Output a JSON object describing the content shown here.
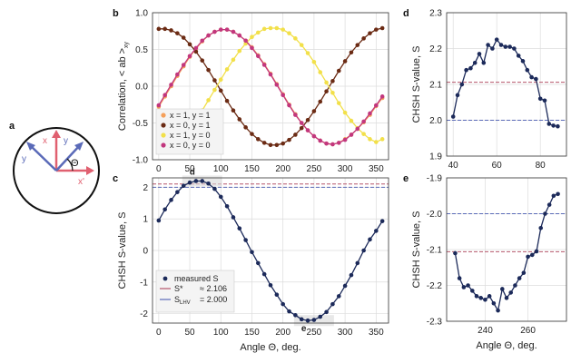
{
  "chart_data": [
    {
      "panel": "b",
      "type": "line",
      "ylabel": "Correlation, < ab >xy",
      "ylabel_main": "Correlation, ",
      "ylabel_bracket": "< ab >",
      "ylabel_sub": "xy",
      "x": [
        0,
        10,
        20,
        30,
        40,
        50,
        60,
        70,
        80,
        90,
        100,
        110,
        120,
        130,
        140,
        150,
        160,
        170,
        180,
        190,
        200,
        210,
        220,
        230,
        240,
        250,
        260,
        270,
        280,
        290,
        300,
        310,
        320,
        330,
        340,
        350,
        360
      ],
      "xlim": [
        -10,
        370
      ],
      "ylim": [
        -1.0,
        1.0
      ],
      "xticks": [
        "0",
        "50",
        "100",
        "150",
        "200",
        "250",
        "300",
        "350"
      ],
      "yticks": [
        "1.0",
        "0.5",
        "0.0",
        "-0.5",
        "-1.0"
      ],
      "grid": true,
      "legend_position": "lower-left",
      "series": [
        {
          "name": "x = 1, y = 1",
          "color": "#f5a05a",
          "values": [
            -0.28,
            -0.14,
            0.0,
            0.14,
            0.27,
            0.4,
            0.51,
            0.61,
            0.69,
            0.74,
            0.77,
            0.77,
            0.74,
            0.69,
            0.62,
            0.53,
            0.42,
            0.3,
            0.17,
            0.03,
            -0.11,
            -0.25,
            -0.38,
            -0.5,
            -0.6,
            -0.68,
            -0.74,
            -0.78,
            -0.79,
            -0.77,
            -0.72,
            -0.66,
            -0.58,
            -0.49,
            -0.39,
            -0.27,
            -0.16
          ]
        },
        {
          "name": "x = 0, y = 1",
          "color": "#6b2b14",
          "values": [
            0.78,
            0.78,
            0.76,
            0.72,
            0.66,
            0.57,
            0.47,
            0.35,
            0.22,
            0.08,
            -0.06,
            -0.2,
            -0.33,
            -0.45,
            -0.56,
            -0.65,
            -0.72,
            -0.77,
            -0.8,
            -0.8,
            -0.78,
            -0.73,
            -0.66,
            -0.57,
            -0.46,
            -0.34,
            -0.21,
            -0.07,
            0.07,
            0.21,
            0.34,
            0.46,
            0.56,
            0.65,
            0.72,
            0.77,
            0.79
          ]
        },
        {
          "name": "x = 1, y = 0",
          "color": "#f2e04a",
          "values": [
            -0.78,
            -0.78,
            -0.76,
            -0.72,
            -0.65,
            -0.56,
            -0.45,
            -0.33,
            -0.19,
            -0.05,
            0.09,
            0.23,
            0.36,
            0.48,
            0.58,
            0.67,
            0.73,
            0.78,
            0.79,
            0.79,
            0.77,
            0.72,
            0.65,
            0.56,
            0.45,
            0.33,
            0.19,
            0.05,
            -0.09,
            -0.23,
            -0.36,
            -0.47,
            -0.57,
            -0.65,
            -0.72,
            -0.76,
            -0.72
          ]
        },
        {
          "name": "x = 0, y = 0",
          "color": "#c2377e",
          "values": [
            -0.26,
            -0.12,
            0.02,
            0.16,
            0.29,
            0.41,
            0.52,
            0.62,
            0.69,
            0.74,
            0.77,
            0.77,
            0.74,
            0.69,
            0.62,
            0.52,
            0.41,
            0.29,
            0.16,
            0.02,
            -0.12,
            -0.26,
            -0.39,
            -0.5,
            -0.6,
            -0.68,
            -0.74,
            -0.78,
            -0.79,
            -0.77,
            -0.73,
            -0.66,
            -0.58,
            -0.48,
            -0.37,
            -0.26,
            -0.14
          ]
        }
      ]
    },
    {
      "panel": "c",
      "type": "line",
      "xlabel": "Angle Θ, deg.",
      "ylabel": "CHSH S-value, S",
      "x": [
        0,
        10,
        20,
        30,
        40,
        50,
        60,
        70,
        80,
        90,
        100,
        110,
        120,
        130,
        140,
        150,
        160,
        170,
        180,
        190,
        200,
        210,
        220,
        230,
        240,
        250,
        260,
        270,
        280,
        290,
        300,
        310,
        320,
        330,
        340,
        350,
        360
      ],
      "xlim": [
        -10,
        370
      ],
      "ylim": [
        -2.3,
        2.3
      ],
      "xticks": [
        "0",
        "50",
        "100",
        "150",
        "200",
        "250",
        "300",
        "350"
      ],
      "yticks": [
        "2",
        "1",
        "0",
        "-1",
        "-2"
      ],
      "grid": true,
      "legend_position": "lower-left",
      "series": [
        {
          "name": "measured S",
          "color": "#1c2a5a",
          "values": [
            0.95,
            1.3,
            1.6,
            1.85,
            2.05,
            2.15,
            2.2,
            2.2,
            2.12,
            1.95,
            1.7,
            1.4,
            1.05,
            0.7,
            0.33,
            -0.05,
            -0.4,
            -0.75,
            -1.1,
            -1.4,
            -1.7,
            -1.93,
            -2.05,
            -2.18,
            -2.22,
            -2.2,
            -2.1,
            -1.95,
            -1.7,
            -1.45,
            -1.12,
            -0.78,
            -0.4,
            0.0,
            0.35,
            0.62,
            0.93
          ]
        }
      ],
      "reference_lines": [
        {
          "name": "S*",
          "value_label": "≈ 2.106",
          "value": 2.106,
          "color": "#b5556a"
        },
        {
          "name": "S",
          "subscript": "LHV",
          "value_label": "= 2.000",
          "value": 2.0,
          "color": "#5a6ab8"
        }
      ],
      "annotations": [
        {
          "text": "d",
          "x": 70,
          "y": 2.2
        },
        {
          "text": "e",
          "x": 250,
          "y": -2.22
        }
      ]
    },
    {
      "panel": "d",
      "type": "line",
      "ylabel": "CHSH S-value, S",
      "x": [
        40,
        42,
        44,
        46,
        48,
        50,
        52,
        54,
        56,
        58,
        60,
        62,
        64,
        66,
        68,
        70,
        72,
        74,
        76,
        78,
        80,
        82,
        84,
        86,
        88
      ],
      "xlim": [
        37,
        92
      ],
      "ylim": [
        1.9,
        2.3
      ],
      "xticks": [
        "40",
        "60",
        "80"
      ],
      "yticks": [
        "2.3",
        "2.2",
        "2.1",
        "2.0",
        "1.9"
      ],
      "grid": true,
      "series": [
        {
          "name": "measured S",
          "color": "#1c2a5a",
          "values": [
            2.01,
            2.07,
            2.1,
            2.14,
            2.145,
            2.16,
            2.185,
            2.16,
            2.21,
            2.2,
            2.225,
            2.21,
            2.205,
            2.205,
            2.2,
            2.18,
            2.165,
            2.14,
            2.12,
            2.115,
            2.06,
            2.055,
            1.99,
            1.985,
            1.983
          ]
        }
      ],
      "reference_lines": [
        {
          "value": 2.106,
          "color": "#b5556a"
        },
        {
          "value": 2.0,
          "color": "#5a6ab8"
        }
      ]
    },
    {
      "panel": "e",
      "type": "line",
      "xlabel": "Angle Θ, deg.",
      "ylabel": "CHSH S-value, S",
      "x": [
        226,
        228,
        230,
        232,
        234,
        236,
        238,
        240,
        242,
        244,
        246,
        248,
        250,
        252,
        254,
        256,
        258,
        260,
        262,
        264,
        266,
        268,
        270,
        272,
        274
      ],
      "xlim": [
        222,
        278
      ],
      "ylim": [
        -2.3,
        -1.9
      ],
      "xticks": [
        "240",
        "260"
      ],
      "yticks": [
        "-1.9",
        "-2.0",
        "-2.1",
        "-2.2",
        "-2.3"
      ],
      "grid": true,
      "series": [
        {
          "name": "measured S",
          "color": "#1c2a5a",
          "values": [
            -2.11,
            -2.18,
            -2.205,
            -2.2,
            -2.215,
            -2.23,
            -2.235,
            -2.24,
            -2.23,
            -2.25,
            -2.27,
            -2.21,
            -2.235,
            -2.22,
            -2.2,
            -2.18,
            -2.165,
            -2.12,
            -2.115,
            -2.105,
            -2.04,
            -2.0,
            -1.975,
            -1.95,
            -1.945
          ]
        }
      ],
      "reference_lines": [
        {
          "value": -2.106,
          "color": "#b5556a"
        },
        {
          "value": -2.0,
          "color": "#5a6ab8"
        }
      ]
    }
  ],
  "panel_letters": {
    "a": "a",
    "b": "b",
    "c": "c",
    "d": "d",
    "e": "e"
  },
  "schematic": {
    "labels": {
      "x_up": "x",
      "y_left": "y",
      "y_right": "y",
      "x_right": "x'",
      "theta": "Θ"
    },
    "colors": {
      "blue_arrows": "#5a6ab8",
      "red_arrows": "#e06070"
    }
  }
}
